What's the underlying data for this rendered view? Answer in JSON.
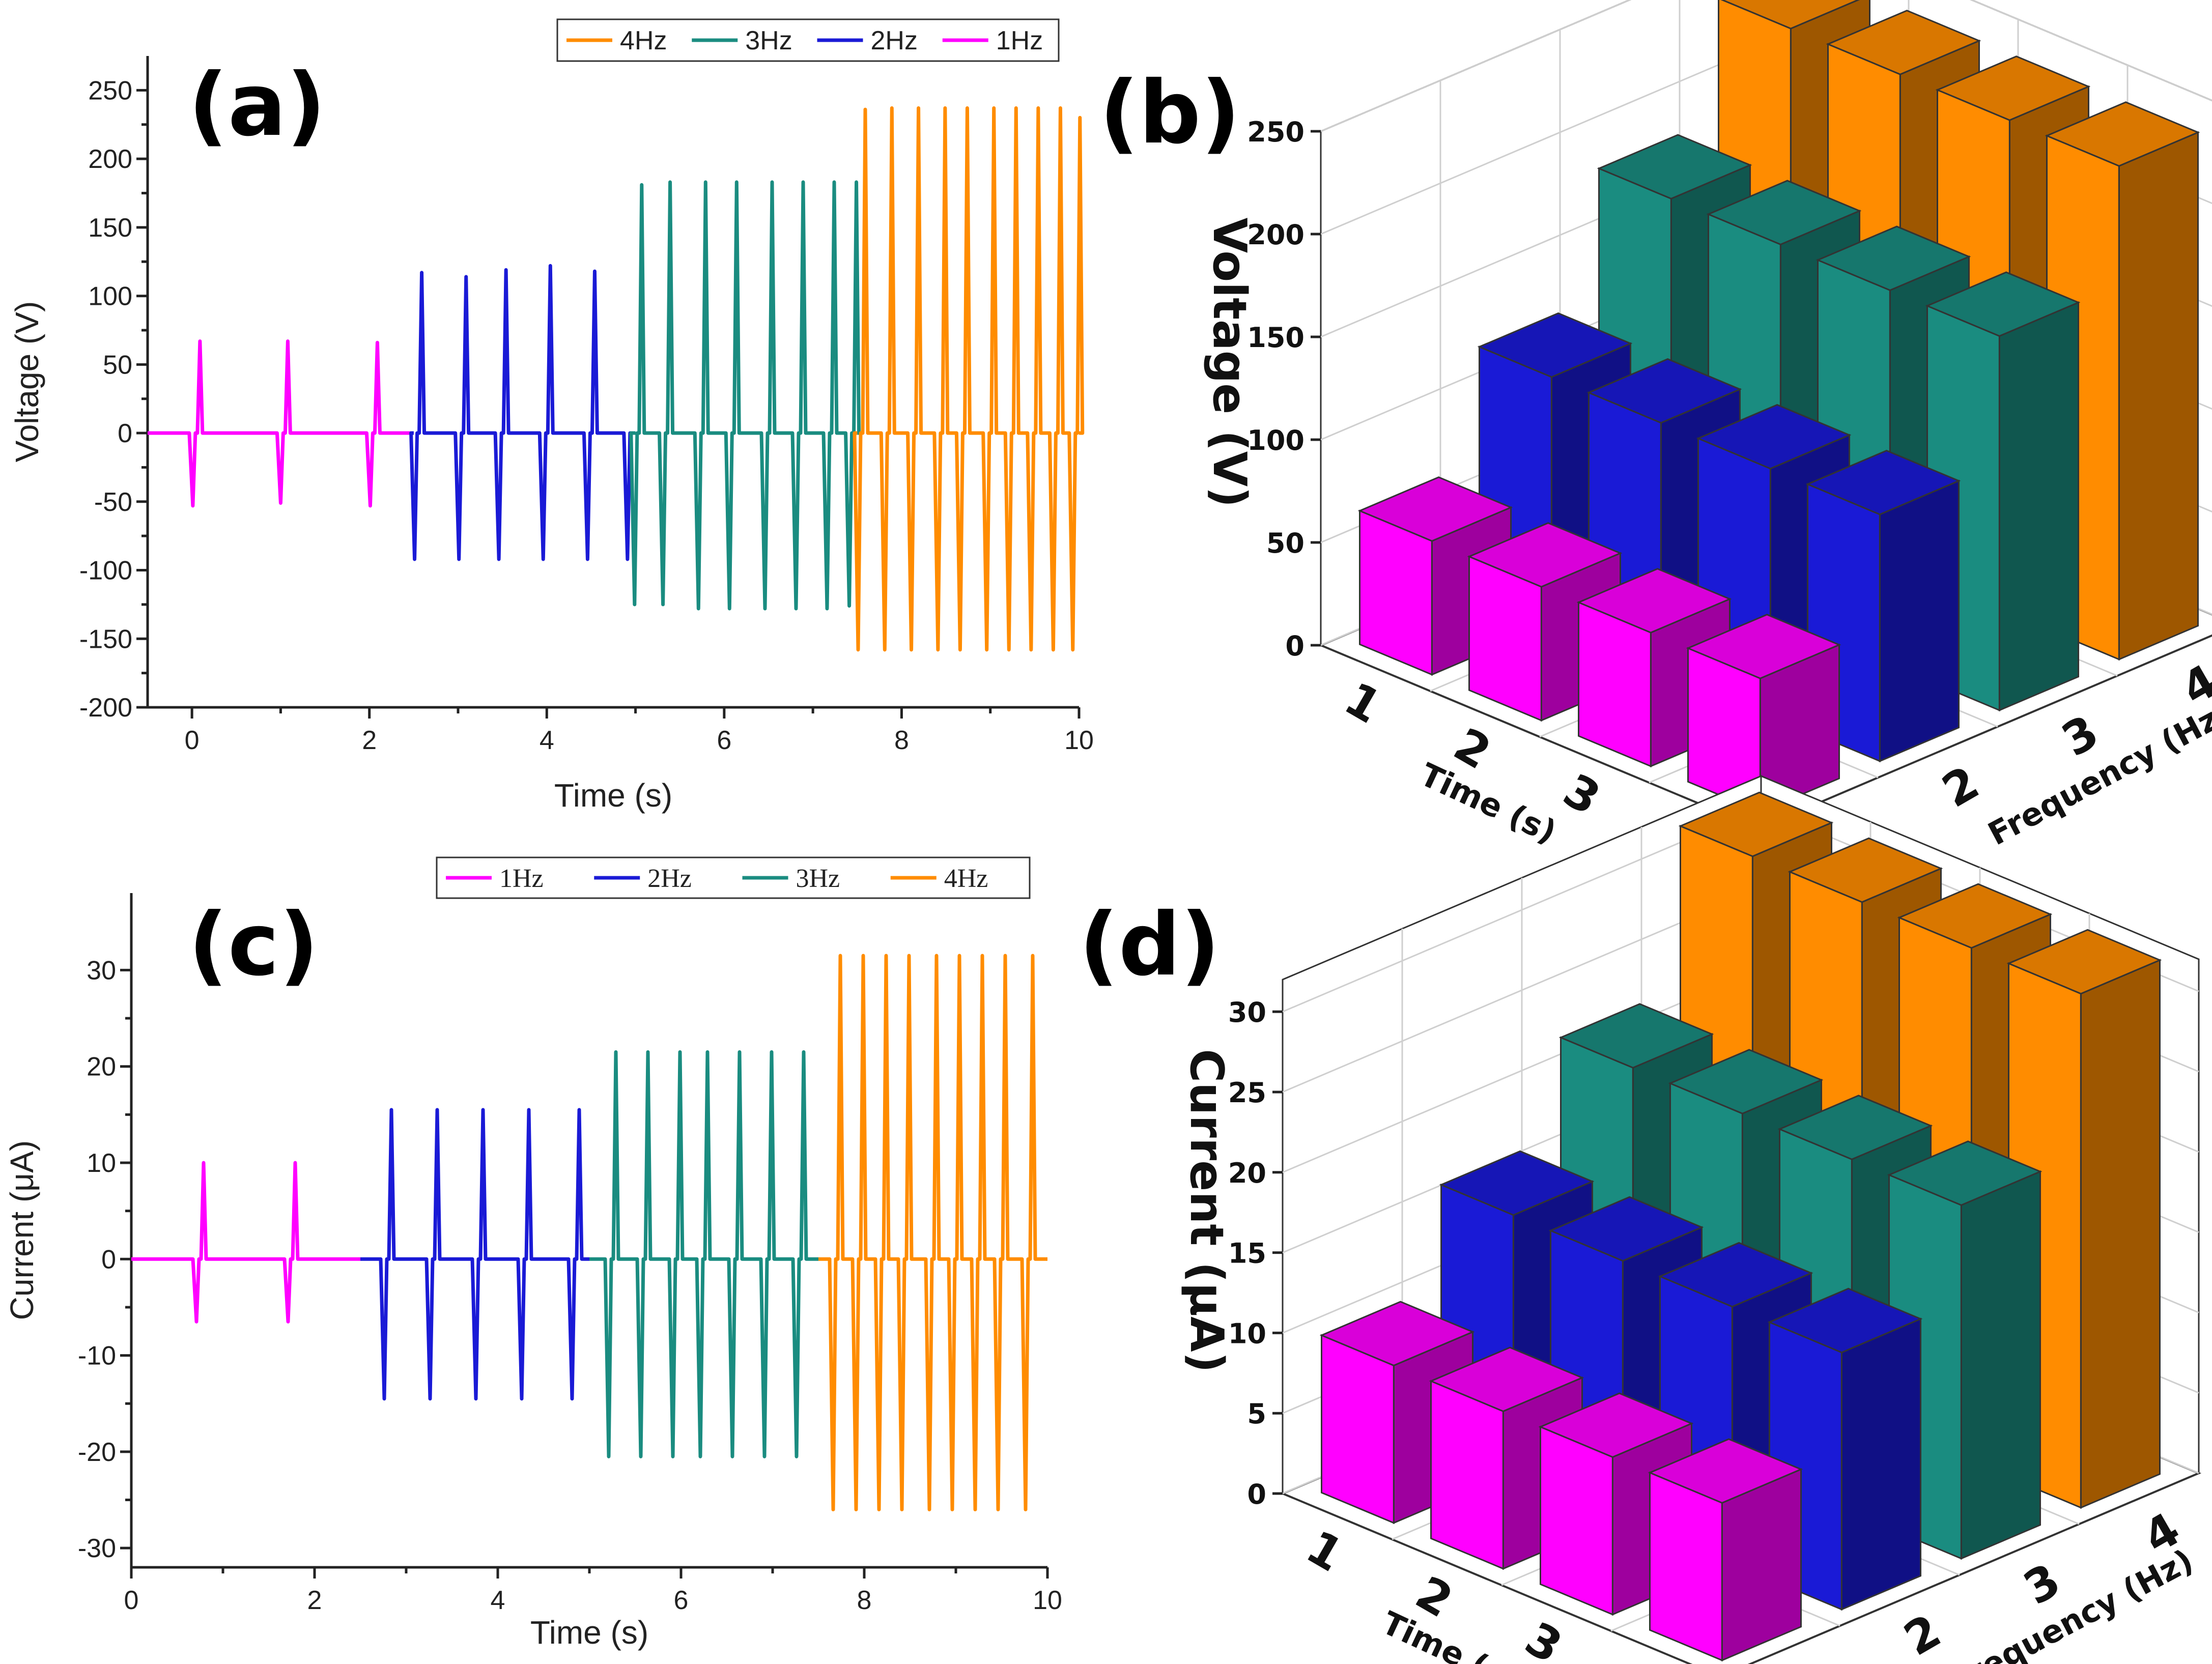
{
  "colors": {
    "1Hz": "#ff00ff",
    "2Hz": "#1a1ad6",
    "3Hz": "#1a8c80",
    "4Hz": "#ff8c00"
  },
  "chart_data": [
    {
      "id": "a",
      "panel_label": "(a)",
      "type": "line",
      "xlabel": "Time (s)",
      "ylabel": "Voltage (V)",
      "xlim": [
        -0.5,
        10
      ],
      "ylim": [
        -200,
        275
      ],
      "xticks": [
        0,
        2,
        4,
        6,
        8,
        10
      ],
      "yticks": [
        -200,
        -150,
        -100,
        -50,
        0,
        50,
        100,
        150,
        200,
        250
      ],
      "legend_order": [
        "4Hz",
        "3Hz",
        "2Hz",
        "1Hz"
      ],
      "series": [
        {
          "name": "1Hz",
          "t_start": -0.5,
          "t_end": 2.5,
          "peaks": [
            {
              "t": 0.05,
              "pos": 67,
              "neg": -53
            },
            {
              "t": 1.04,
              "pos": 67,
              "neg": -51
            },
            {
              "t": 2.05,
              "pos": 66,
              "neg": -53
            }
          ]
        },
        {
          "name": "2Hz",
          "t_start": 2.5,
          "t_end": 5.0,
          "peaks": [
            {
              "t": 2.55,
              "pos": 117,
              "neg": -92
            },
            {
              "t": 3.05,
              "pos": 114,
              "neg": -92
            },
            {
              "t": 3.5,
              "pos": 119,
              "neg": -92
            },
            {
              "t": 4.0,
              "pos": 122,
              "neg": -92
            },
            {
              "t": 4.5,
              "pos": 118,
              "neg": -92
            },
            {
              "t": 4.95,
              "pos": 0,
              "neg": -92
            }
          ]
        },
        {
          "name": "3Hz",
          "t_start": 5.0,
          "t_end": 7.5,
          "peaks": [
            {
              "t": 5.03,
              "pos": 181,
              "neg": -125
            },
            {
              "t": 5.35,
              "pos": 183,
              "neg": -125
            },
            {
              "t": 5.75,
              "pos": 183,
              "neg": -128
            },
            {
              "t": 6.1,
              "pos": 183,
              "neg": -128
            },
            {
              "t": 6.5,
              "pos": 183,
              "neg": -128
            },
            {
              "t": 6.85,
              "pos": 183,
              "neg": -128
            },
            {
              "t": 7.2,
              "pos": 183,
              "neg": -128
            },
            {
              "t": 7.45,
              "pos": 183,
              "neg": -126
            }
          ]
        },
        {
          "name": "4Hz",
          "t_start": 7.5,
          "t_end": 10.0,
          "peaks": [
            {
              "t": 7.55,
              "pos": 236,
              "neg": -158
            },
            {
              "t": 7.85,
              "pos": 237,
              "neg": -158
            },
            {
              "t": 8.15,
              "pos": 237,
              "neg": -158
            },
            {
              "t": 8.45,
              "pos": 237,
              "neg": -158
            },
            {
              "t": 8.7,
              "pos": 237,
              "neg": -158
            },
            {
              "t": 9.0,
              "pos": 237,
              "neg": -158
            },
            {
              "t": 9.25,
              "pos": 237,
              "neg": -158
            },
            {
              "t": 9.5,
              "pos": 237,
              "neg": -158
            },
            {
              "t": 9.75,
              "pos": 237,
              "neg": -158
            },
            {
              "t": 9.97,
              "pos": 230,
              "neg": -158
            }
          ]
        }
      ]
    },
    {
      "id": "b",
      "panel_label": "(b)",
      "type": "bar3d",
      "zlabel": "Voltage (V)",
      "xlabel": "Time (s)",
      "ylabel": "Frequency (Hz)",
      "zlim": [
        0,
        250
      ],
      "zticks": [
        0,
        50,
        100,
        150,
        200,
        250
      ],
      "time_ticks": [
        "1",
        "2",
        "3",
        "4"
      ],
      "freq_ticks": [
        "1",
        "2",
        "3",
        "4"
      ],
      "series": [
        {
          "name": "1Hz",
          "values": [
            65,
            65,
            65,
            65
          ]
        },
        {
          "name": "2Hz",
          "values": [
            120,
            120,
            120,
            120
          ]
        },
        {
          "name": "3Hz",
          "values": [
            182,
            182,
            182,
            182
          ]
        },
        {
          "name": "4Hz",
          "values": [
            240,
            240,
            240,
            240
          ]
        }
      ]
    },
    {
      "id": "c",
      "panel_label": "(c)",
      "type": "line",
      "xlabel": "Time (s)",
      "ylabel": "Current (μA)",
      "xlim": [
        0,
        10
      ],
      "ylim": [
        -32,
        38
      ],
      "xticks": [
        0,
        2,
        4,
        6,
        8,
        10
      ],
      "yticks": [
        -30,
        -20,
        -10,
        0,
        10,
        20,
        30
      ],
      "legend_order": [
        "1Hz",
        "2Hz",
        "3Hz",
        "4Hz"
      ],
      "series": [
        {
          "name": "1Hz",
          "t_start": 0.0,
          "t_end": 2.5,
          "peaks": [
            {
              "t": 0.75,
              "pos": 10,
              "neg": -6.5
            },
            {
              "t": 1.75,
              "pos": 10,
              "neg": -6.5
            }
          ]
        },
        {
          "name": "2Hz",
          "t_start": 2.5,
          "t_end": 5.0,
          "peaks": [
            {
              "t": 2.8,
              "pos": 15.5,
              "neg": -14.5
            },
            {
              "t": 3.3,
              "pos": 15.5,
              "neg": -14.5
            },
            {
              "t": 3.8,
              "pos": 15.5,
              "neg": -14.5
            },
            {
              "t": 4.3,
              "pos": 15.5,
              "neg": -14.5
            },
            {
              "t": 4.85,
              "pos": 15.5,
              "neg": -14.5
            }
          ]
        },
        {
          "name": "3Hz",
          "t_start": 5.0,
          "t_end": 7.5,
          "peaks": [
            {
              "t": 5.25,
              "pos": 21.5,
              "neg": -20.5
            },
            {
              "t": 5.6,
              "pos": 21.5,
              "neg": -20.5
            },
            {
              "t": 5.95,
              "pos": 21.5,
              "neg": -20.5
            },
            {
              "t": 6.25,
              "pos": 21.5,
              "neg": -20.5
            },
            {
              "t": 6.6,
              "pos": 21.5,
              "neg": -20.5
            },
            {
              "t": 6.95,
              "pos": 21.5,
              "neg": -20.5
            },
            {
              "t": 7.3,
              "pos": 21.5,
              "neg": -20.5
            }
          ]
        },
        {
          "name": "4Hz",
          "t_start": 7.5,
          "t_end": 10.0,
          "peaks": [
            {
              "t": 7.7,
              "pos": 31.5,
              "neg": -26
            },
            {
              "t": 7.95,
              "pos": 31.5,
              "neg": -26
            },
            {
              "t": 8.2,
              "pos": 31.5,
              "neg": -26
            },
            {
              "t": 8.45,
              "pos": 31.5,
              "neg": -26
            },
            {
              "t": 8.75,
              "pos": 31.5,
              "neg": -26
            },
            {
              "t": 9.0,
              "pos": 31.5,
              "neg": -26
            },
            {
              "t": 9.25,
              "pos": 31.5,
              "neg": -26
            },
            {
              "t": 9.5,
              "pos": 31.5,
              "neg": -26
            },
            {
              "t": 9.8,
              "pos": 31.5,
              "neg": -26
            }
          ]
        }
      ]
    },
    {
      "id": "d",
      "panel_label": "(d)",
      "type": "bar3d",
      "zlabel": "Current (μA)",
      "xlabel": "Time (s)",
      "ylabel": "Frequency (Hz)",
      "zlim": [
        0,
        32
      ],
      "zticks": [
        0,
        5,
        10,
        15,
        20,
        25,
        30
      ],
      "time_ticks": [
        "1",
        "2",
        "3",
        "4"
      ],
      "freq_ticks": [
        "1",
        "2",
        "3",
        "4"
      ],
      "series": [
        {
          "name": "1Hz",
          "values": [
            9.8,
            9.8,
            9.8,
            9.8
          ]
        },
        {
          "name": "2Hz",
          "values": [
            16,
            16,
            16,
            16
          ]
        },
        {
          "name": "3Hz",
          "values": [
            22,
            22,
            22,
            22
          ]
        },
        {
          "name": "4Hz",
          "values": [
            32,
            32,
            32,
            32
          ]
        }
      ]
    }
  ]
}
